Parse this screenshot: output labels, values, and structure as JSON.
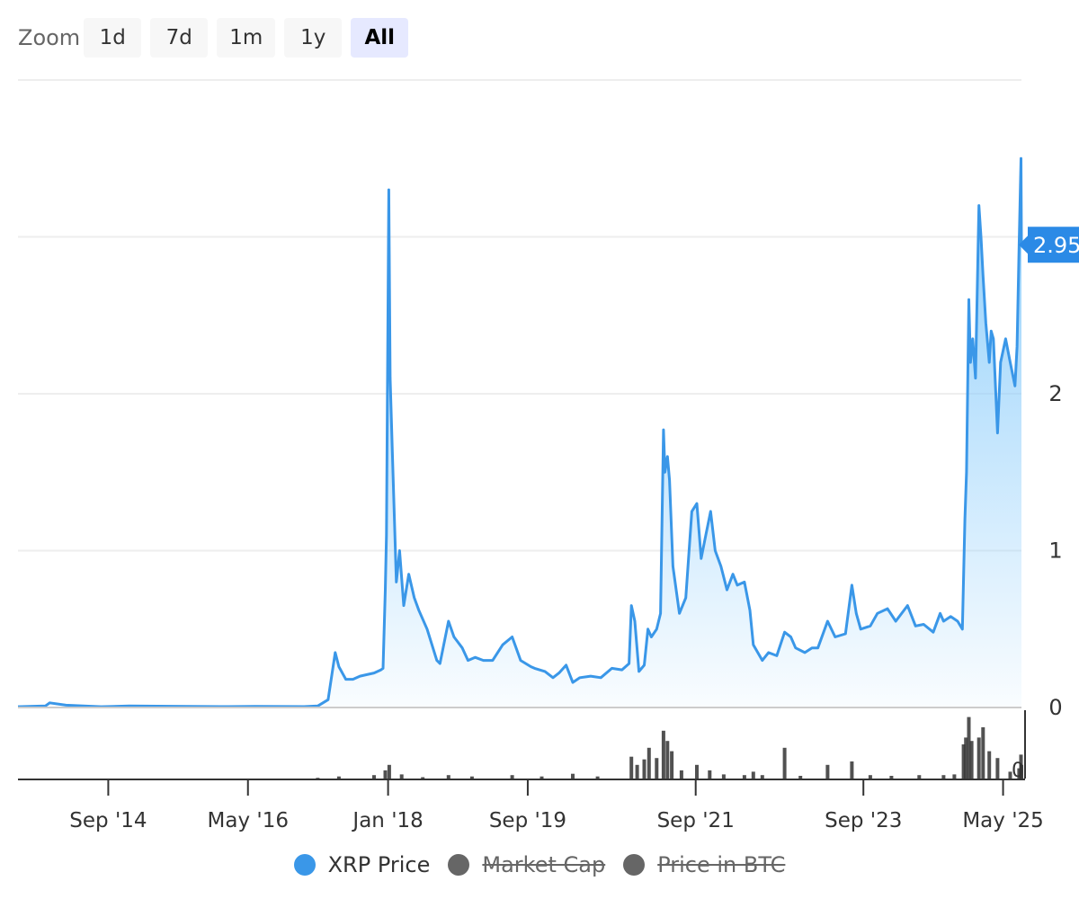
{
  "zoom": {
    "label": "Zoom",
    "buttons": [
      {
        "label": "1d",
        "active": false
      },
      {
        "label": "7d",
        "active": false
      },
      {
        "label": "1m",
        "active": false
      },
      {
        "label": "1y",
        "active": false
      },
      {
        "label": "All",
        "active": true
      }
    ]
  },
  "legend": [
    {
      "label": "XRP Price",
      "color": "#3a97e8",
      "hidden": false
    },
    {
      "label": "Market Cap",
      "color": "#666666",
      "hidden": true
    },
    {
      "label": "Price in BTC",
      "color": "#666666",
      "hidden": true
    }
  ],
  "chart_data": {
    "type": "area",
    "title": "",
    "xlabel": "",
    "ylabel": "",
    "x_range": [
      "2013-08-04",
      "2025-07-20"
    ],
    "ylim": [
      0,
      4
    ],
    "y_ticks": [
      {
        "value": 0,
        "label": "0"
      },
      {
        "value": 1,
        "label": "1"
      },
      {
        "value": 2,
        "label": "2"
      },
      {
        "value": 3,
        "label": "3"
      }
    ],
    "x_ticks": [
      {
        "date": "2014-09-01",
        "label": "Sep '14"
      },
      {
        "date": "2016-05-01",
        "label": "May '16"
      },
      {
        "date": "2018-01-01",
        "label": "Jan '18"
      },
      {
        "date": "2019-09-01",
        "label": "Sep '19"
      },
      {
        "date": "2021-09-01",
        "label": "Sep '21"
      },
      {
        "date": "2023-09-01",
        "label": "Sep '23"
      },
      {
        "date": "2025-05-01",
        "label": "May '25"
      }
    ],
    "grid": true,
    "legend_position": "bottom",
    "current_value": {
      "label": "2.95",
      "value": 2.95
    },
    "series": [
      {
        "name": "XRP Price",
        "color": "#3a97e8",
        "x": [
          "2013-08-04",
          "2013-12-01",
          "2013-12-20",
          "2014-03-01",
          "2014-08-01",
          "2014-12-01",
          "2015-06-01",
          "2016-01-01",
          "2016-06-01",
          "2017-01-01",
          "2017-03-01",
          "2017-04-15",
          "2017-05-16",
          "2017-06-01",
          "2017-07-01",
          "2017-08-01",
          "2017-09-01",
          "2017-10-01",
          "2017-11-01",
          "2017-12-01",
          "2017-12-10",
          "2017-12-20",
          "2017-12-25",
          "2018-01-04",
          "2018-01-10",
          "2018-01-20",
          "2018-02-06",
          "2018-02-20",
          "2018-03-10",
          "2018-04-01",
          "2018-04-25",
          "2018-05-15",
          "2018-06-20",
          "2018-08-01",
          "2018-08-15",
          "2018-09-21",
          "2018-10-15",
          "2018-11-20",
          "2018-12-15",
          "2019-01-15",
          "2019-02-20",
          "2019-04-01",
          "2019-05-15",
          "2019-06-25",
          "2019-08-01",
          "2019-09-15",
          "2019-10-01",
          "2019-11-15",
          "2019-12-20",
          "2020-01-15",
          "2020-02-15",
          "2020-03-15",
          "2020-04-15",
          "2020-06-01",
          "2020-07-15",
          "2020-09-01",
          "2020-10-15",
          "2020-11-15",
          "2020-11-25",
          "2020-12-10",
          "2020-12-28",
          "2021-01-20",
          "2021-02-05",
          "2021-02-20",
          "2021-03-15",
          "2021-04-01",
          "2021-04-14",
          "2021-04-20",
          "2021-05-01",
          "2021-05-10",
          "2021-05-25",
          "2021-06-22",
          "2021-07-20",
          "2021-08-15",
          "2021-09-06",
          "2021-09-25",
          "2021-10-15",
          "2021-11-05",
          "2021-11-25",
          "2021-12-20",
          "2022-01-15",
          "2022-02-10",
          "2022-03-01",
          "2022-04-01",
          "2022-04-25",
          "2022-05-10",
          "2022-06-18",
          "2022-07-15",
          "2022-08-20",
          "2022-09-23",
          "2022-10-20",
          "2022-11-10",
          "2022-12-20",
          "2023-01-20",
          "2023-02-15",
          "2023-03-29",
          "2023-05-01",
          "2023-06-15",
          "2023-07-13",
          "2023-08-01",
          "2023-08-20",
          "2023-10-01",
          "2023-11-01",
          "2023-12-15",
          "2024-01-20",
          "2024-03-11",
          "2024-04-15",
          "2024-05-20",
          "2024-07-01",
          "2024-07-31",
          "2024-08-15",
          "2024-09-15",
          "2024-10-15",
          "2024-11-05",
          "2024-11-16",
          "2024-11-23",
          "2024-12-03",
          "2024-12-10",
          "2024-12-20",
          "2025-01-01",
          "2025-01-16",
          "2025-01-25",
          "2025-02-03",
          "2025-02-15",
          "2025-03-02",
          "2025-03-10",
          "2025-03-20",
          "2025-04-07",
          "2025-04-20",
          "2025-05-12",
          "2025-06-01",
          "2025-06-22",
          "2025-07-01",
          "2025-07-10",
          "2025-07-18",
          "2025-07-20"
        ],
        "y": [
          0.005,
          0.01,
          0.03,
          0.015,
          0.005,
          0.01,
          0.008,
          0.006,
          0.007,
          0.006,
          0.01,
          0.05,
          0.35,
          0.26,
          0.18,
          0.18,
          0.2,
          0.21,
          0.22,
          0.24,
          0.25,
          0.75,
          1.1,
          3.3,
          2.1,
          1.6,
          0.8,
          1.0,
          0.65,
          0.85,
          0.7,
          0.62,
          0.5,
          0.3,
          0.28,
          0.55,
          0.45,
          0.38,
          0.3,
          0.32,
          0.3,
          0.3,
          0.4,
          0.45,
          0.3,
          0.26,
          0.25,
          0.23,
          0.19,
          0.22,
          0.27,
          0.16,
          0.19,
          0.2,
          0.19,
          0.25,
          0.24,
          0.28,
          0.65,
          0.55,
          0.23,
          0.27,
          0.5,
          0.45,
          0.5,
          0.6,
          1.77,
          1.5,
          1.6,
          1.45,
          0.9,
          0.6,
          0.7,
          1.25,
          1.3,
          0.95,
          1.1,
          1.25,
          1.0,
          0.9,
          0.75,
          0.85,
          0.78,
          0.8,
          0.62,
          0.4,
          0.3,
          0.35,
          0.33,
          0.48,
          0.45,
          0.38,
          0.35,
          0.38,
          0.38,
          0.55,
          0.45,
          0.47,
          0.78,
          0.6,
          0.5,
          0.52,
          0.6,
          0.63,
          0.55,
          0.65,
          0.52,
          0.53,
          0.48,
          0.6,
          0.55,
          0.58,
          0.55,
          0.5,
          1.2,
          1.5,
          2.6,
          2.2,
          2.35,
          2.1,
          3.2,
          3.0,
          2.75,
          2.45,
          2.2,
          2.4,
          2.35,
          1.75,
          2.2,
          2.35,
          2.2,
          2.05,
          2.3,
          2.95,
          3.5,
          2.95
        ]
      }
    ],
    "volume": {
      "name": "Volume",
      "ylim": [
        0,
        1
      ],
      "y_ticks": [
        {
          "value": 0,
          "label": "0"
        }
      ],
      "x": [
        "2013-08-04",
        "2017-03-01",
        "2017-06-01",
        "2017-11-01",
        "2017-12-20",
        "2018-01-06",
        "2018-03-01",
        "2018-06-01",
        "2018-09-21",
        "2019-01-01",
        "2019-06-25",
        "2019-11-01",
        "2020-03-15",
        "2020-07-01",
        "2020-11-25",
        "2020-12-20",
        "2021-01-20",
        "2021-02-10",
        "2021-03-15",
        "2021-04-14",
        "2021-05-01",
        "2021-05-20",
        "2021-07-01",
        "2021-09-06",
        "2021-11-01",
        "2022-01-01",
        "2022-04-01",
        "2022-05-10",
        "2022-06-18",
        "2022-09-23",
        "2022-12-01",
        "2023-03-29",
        "2023-07-13",
        "2023-10-01",
        "2024-01-01",
        "2024-05-01",
        "2024-08-15",
        "2024-10-01",
        "2024-11-10",
        "2024-11-20",
        "2024-12-03",
        "2024-12-15",
        "2025-01-16",
        "2025-02-03",
        "2025-03-02",
        "2025-04-07",
        "2025-06-01",
        "2025-07-10",
        "2025-07-18",
        "2025-07-20"
      ],
      "values": [
        0.0,
        0.01,
        0.03,
        0.05,
        0.12,
        0.2,
        0.06,
        0.02,
        0.05,
        0.03,
        0.05,
        0.03,
        0.07,
        0.03,
        0.32,
        0.2,
        0.28,
        0.45,
        0.3,
        0.7,
        0.55,
        0.4,
        0.12,
        0.2,
        0.12,
        0.06,
        0.05,
        0.1,
        0.05,
        0.45,
        0.04,
        0.2,
        0.25,
        0.05,
        0.04,
        0.05,
        0.05,
        0.06,
        0.5,
        0.6,
        0.9,
        0.55,
        0.6,
        0.75,
        0.4,
        0.3,
        0.1,
        0.15,
        0.35,
        0.2
      ]
    }
  }
}
